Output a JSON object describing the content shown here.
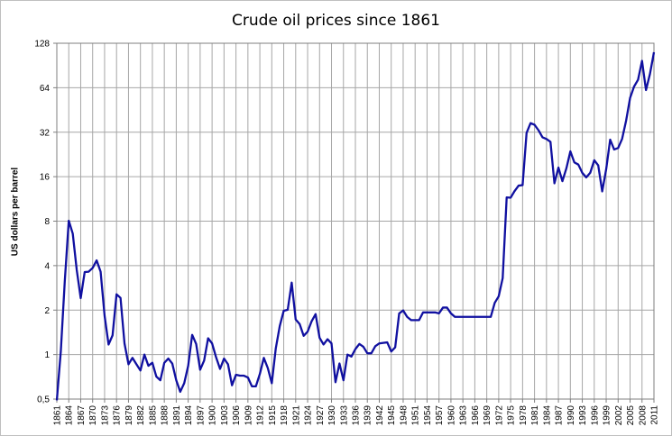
{
  "chart_data": {
    "type": "line",
    "title": "Crude oil prices since 1861",
    "ylabel": "US dollars per barrel",
    "xlabel": "",
    "yscale": "log2",
    "ylim": [
      0.5,
      128
    ],
    "yticks": [
      0.5,
      1,
      2,
      4,
      8,
      16,
      32,
      64,
      128
    ],
    "ytick_labels": [
      "0,5",
      "1",
      "2",
      "4",
      "8",
      "16",
      "32",
      "64",
      "128"
    ],
    "xlim": [
      1861,
      2011
    ],
    "xtick_labels": [
      "1861",
      "1864",
      "1867",
      "1870",
      "1873",
      "1876",
      "1879",
      "1882",
      "1885",
      "1888",
      "1891",
      "1894",
      "1897",
      "1900",
      "1903",
      "1906",
      "1909",
      "1912",
      "1915",
      "1918",
      "1921",
      "1924",
      "1927",
      "1930",
      "1933",
      "1936",
      "1939",
      "1942",
      "1945",
      "1948",
      "1951",
      "1954",
      "1957",
      "1960",
      "1963",
      "1966",
      "1969",
      "1972",
      "1975",
      "1978",
      "1981",
      "1984",
      "1987",
      "1990",
      "1993",
      "1996",
      "1999",
      "2002",
      "2005",
      "2008",
      "2011"
    ],
    "grid": true,
    "legend": "none",
    "series_color": "#1010a0",
    "series": [
      {
        "x": [
          1861,
          1862,
          1863,
          1864,
          1865,
          1866,
          1867,
          1868,
          1869,
          1870,
          1871,
          1872,
          1873,
          1874,
          1875,
          1876,
          1877,
          1878,
          1879,
          1880,
          1881,
          1882,
          1883,
          1884,
          1885,
          1886,
          1887,
          1888,
          1889,
          1890,
          1891,
          1892,
          1893,
          1894,
          1895,
          1896,
          1897,
          1898,
          1899,
          1900,
          1901,
          1902,
          1903,
          1904,
          1905,
          1906,
          1907,
          1908,
          1909,
          1910,
          1911,
          1912,
          1913,
          1914,
          1915,
          1916,
          1917,
          1918,
          1919,
          1920,
          1921,
          1922,
          1923,
          1924,
          1925,
          1926,
          1927,
          1928,
          1929,
          1930,
          1931,
          1932,
          1933,
          1934,
          1935,
          1936,
          1937,
          1938,
          1939,
          1940,
          1941,
          1942,
          1943,
          1944,
          1945,
          1946,
          1947,
          1948,
          1949,
          1950,
          1951,
          1952,
          1953,
          1954,
          1955,
          1956,
          1957,
          1958,
          1959,
          1960,
          1961,
          1962,
          1963,
          1964,
          1965,
          1966,
          1967,
          1968,
          1969,
          1970,
          1971,
          1972,
          1973,
          1974,
          1975,
          1976,
          1977,
          1978,
          1979,
          1980,
          1981,
          1982,
          1983,
          1984,
          1985,
          1986,
          1987,
          1988,
          1989,
          1990,
          1991,
          1992,
          1993,
          1994,
          1995,
          1996,
          1997,
          1998,
          1999,
          2000,
          2001,
          2002,
          2003,
          2004,
          2005,
          2006,
          2007,
          2008,
          2009,
          2010,
          2011
        ],
        "values": [
          0.49,
          1.05,
          3.15,
          8.06,
          6.59,
          3.74,
          2.41,
          3.62,
          3.64,
          3.86,
          4.34,
          3.64,
          1.83,
          1.17,
          1.35,
          2.56,
          2.42,
          1.19,
          0.86,
          0.95,
          0.86,
          0.78,
          1.0,
          0.84,
          0.88,
          0.71,
          0.67,
          0.88,
          0.94,
          0.87,
          0.67,
          0.56,
          0.64,
          0.84,
          1.36,
          1.18,
          0.79,
          0.91,
          1.29,
          1.19,
          0.96,
          0.8,
          0.94,
          0.86,
          0.62,
          0.73,
          0.72,
          0.72,
          0.7,
          0.61,
          0.61,
          0.74,
          0.95,
          0.81,
          0.64,
          1.1,
          1.56,
          1.98,
          2.01,
          3.07,
          1.73,
          1.61,
          1.34,
          1.43,
          1.68,
          1.88,
          1.3,
          1.17,
          1.27,
          1.19,
          0.65,
          0.87,
          0.67,
          1.0,
          0.97,
          1.09,
          1.18,
          1.13,
          1.02,
          1.02,
          1.14,
          1.19,
          1.2,
          1.21,
          1.05,
          1.12,
          1.9,
          1.99,
          1.8,
          1.71,
          1.71,
          1.71,
          1.93,
          1.93,
          1.93,
          1.93,
          1.9,
          2.08,
          2.08,
          1.9,
          1.8,
          1.8,
          1.8,
          1.8,
          1.8,
          1.8,
          1.8,
          1.8,
          1.8,
          1.8,
          2.24,
          2.48,
          3.29,
          11.58,
          11.53,
          12.8,
          13.92,
          14.02,
          31.61,
          36.83,
          35.93,
          32.97,
          29.55,
          28.78,
          27.56,
          14.43,
          18.44,
          14.92,
          18.23,
          23.73,
          20.0,
          19.32,
          16.97,
          15.82,
          17.02,
          20.67,
          19.09,
          12.72,
          17.97,
          28.5,
          24.44,
          25.02,
          28.83,
          38.27,
          54.52,
          65.14,
          72.39,
          97.26,
          61.67,
          79.5,
          111.26
        ]
      }
    ]
  }
}
